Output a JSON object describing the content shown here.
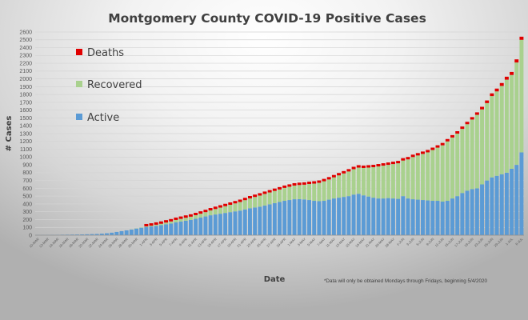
{
  "chart_data": {
    "type": "bar",
    "stacked": true,
    "title": "Montgomery County COVID-19 Positive Cases",
    "xlabel": "Date",
    "ylabel": "# Cases",
    "ylim": [
      0,
      2600
    ],
    "ytick_step": 100,
    "grid": true,
    "legend_position": "top-left",
    "note": "*Data will only be obtained Mondays through Fridays, beginning 5/4/2020",
    "colors": {
      "Active": "#5b9bd5",
      "Recovered": "#a9d18e",
      "Deaths": "#e00000"
    },
    "legend": [
      "Deaths",
      "Recovered",
      "Active"
    ],
    "categories": [
      "10-MAR",
      "11-MAR",
      "12-MAR",
      "13-MAR",
      "14-MAR",
      "15-MAR",
      "16-MAR",
      "17-MAR",
      "18-MAR",
      "19-MAR",
      "20-MAR",
      "21-MAR",
      "22-MAR",
      "23-MAR",
      "24-MAR",
      "25-MAR",
      "26-MAR",
      "27-MAR",
      "28-MAR",
      "29-MAR",
      "30-MAR",
      "31-MAR",
      "1-APR",
      "2-APR",
      "3-APR",
      "4-APR",
      "5-APR",
      "6-APR",
      "7-APR",
      "8-APR",
      "9-APR",
      "10-APR",
      "11-APR",
      "12-APR",
      "13-APR",
      "14-APR",
      "15-APR",
      "16-APR",
      "17-APR",
      "18-APR",
      "19-APR",
      "20-APR",
      "21-APR",
      "22-APR",
      "23-APR",
      "24-APR",
      "25-APR",
      "26-APR",
      "27-APR",
      "28-APR",
      "29-APR",
      "30-APR",
      "1-MAY",
      "2-MAY",
      "3-MAY",
      "4-MAY",
      "5-MAY",
      "6-MAY",
      "7-MAY",
      "8-MAY",
      "11-MAY",
      "12-MAY",
      "13-MAY",
      "14-MAY",
      "15-MAY",
      "18-MAY",
      "19-MAY",
      "20-MAY",
      "21-MAY",
      "22-MAY",
      "26-MAY",
      "27-MAY",
      "28-MAY",
      "29-MAY",
      "1-JUN",
      "2-JUN",
      "3-JUN",
      "4-JUN",
      "5-JUN",
      "8-JUN",
      "9-JUN",
      "10-JUN",
      "11-JUN",
      "12-JUN",
      "15-JUN",
      "16-JUN",
      "17-JUN",
      "18-JUN",
      "19-JUN",
      "22-JUN",
      "23-JUN",
      "24-JUN",
      "25-JUN",
      "26-JUN",
      "29-JUN",
      "30-JUN",
      "1-JUL",
      "2-JUL",
      "6-JUL"
    ],
    "series": [
      {
        "name": "Active",
        "values": [
          2,
          2,
          3,
          4,
          5,
          6,
          7,
          8,
          9,
          10,
          12,
          14,
          16,
          20,
          25,
          32,
          42,
          52,
          62,
          72,
          85,
          95,
          105,
          112,
          120,
          128,
          140,
          150,
          165,
          175,
          185,
          195,
          210,
          225,
          240,
          255,
          265,
          275,
          285,
          295,
          305,
          315,
          330,
          345,
          355,
          365,
          380,
          395,
          410,
          425,
          440,
          450,
          460,
          462,
          458,
          450,
          440,
          435,
          440,
          455,
          470,
          480,
          490,
          500,
          520,
          530,
          510,
          495,
          480,
          470,
          470,
          475,
          470,
          465,
          500,
          470,
          460,
          455,
          450,
          445,
          440,
          440,
          430,
          440,
          470,
          500,
          540,
          570,
          590,
          600,
          650,
          700,
          740,
          760,
          780,
          800,
          850,
          900,
          1060
        ]
      },
      {
        "name": "Recovered",
        "values": [
          0,
          0,
          0,
          0,
          0,
          0,
          0,
          0,
          0,
          0,
          0,
          0,
          0,
          0,
          0,
          0,
          0,
          0,
          0,
          2,
          3,
          5,
          8,
          10,
          14,
          18,
          22,
          26,
          30,
          34,
          38,
          42,
          46,
          50,
          55,
          62,
          70,
          78,
          86,
          94,
          102,
          110,
          118,
          126,
          134,
          142,
          148,
          152,
          156,
          160,
          165,
          170,
          175,
          180,
          188,
          205,
          220,
          235,
          250,
          258,
          270,
          285,
          300,
          315,
          325,
          335,
          350,
          370,
          390,
          410,
          420,
          425,
          440,
          455,
          455,
          500,
          540,
          565,
          590,
          615,
          650,
          680,
          720,
          760,
          780,
          800,
          820,
          850,
          890,
          940,
          960,
          990,
          1040,
          1080,
          1130,
          1190,
          1200,
          1310,
          1440
        ]
      },
      {
        "name": "Deaths",
        "values": [
          0,
          0,
          0,
          0,
          0,
          0,
          0,
          0,
          0,
          0,
          0,
          0,
          0,
          0,
          0,
          0,
          0,
          0,
          0,
          0,
          0,
          0,
          1,
          1,
          1,
          2,
          2,
          2,
          3,
          3,
          3,
          4,
          4,
          4,
          5,
          5,
          6,
          6,
          7,
          7,
          8,
          8,
          9,
          9,
          10,
          10,
          11,
          11,
          12,
          12,
          13,
          13,
          14,
          14,
          15,
          15,
          16,
          16,
          17,
          17,
          18,
          18,
          19,
          19,
          20,
          20,
          21,
          21,
          22,
          22,
          22,
          23,
          23,
          24,
          24,
          25,
          25,
          26,
          26,
          27,
          27,
          28,
          28,
          29,
          29,
          30,
          30,
          31,
          31,
          32,
          33,
          34,
          35,
          36,
          37,
          38,
          39,
          40,
          40
        ]
      }
    ],
    "ytick_labels": [
      "0",
      "100",
      "200",
      "300",
      "400",
      "500",
      "600",
      "700",
      "800",
      "900",
      "1000",
      "1100",
      "1200",
      "1300",
      "1400",
      "1500",
      "1600",
      "1700",
      "1800",
      "1900",
      "2000",
      "2100",
      "2200",
      "2300",
      "2400",
      "2500",
      "2600"
    ],
    "xtick_labels_every": 2
  }
}
